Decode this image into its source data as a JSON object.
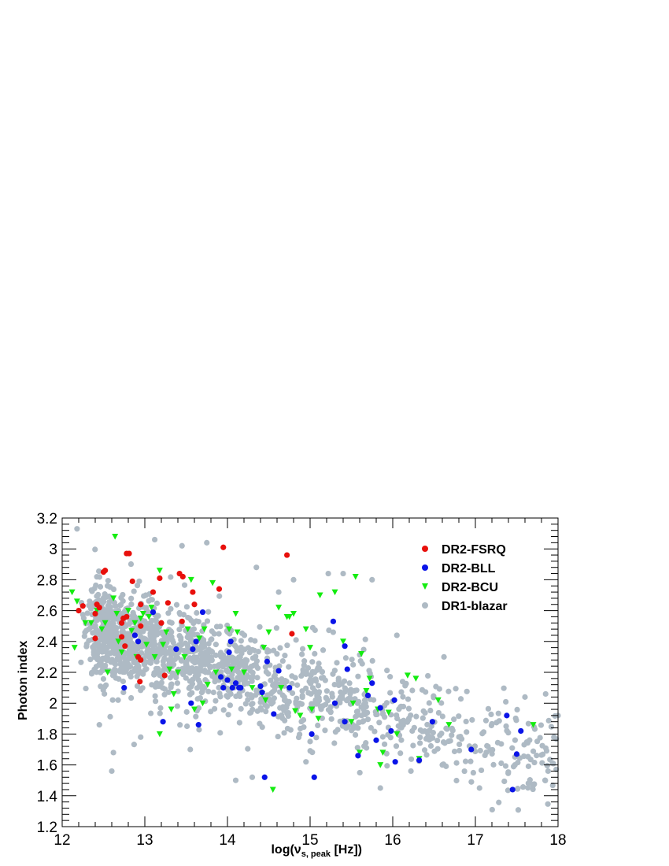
{
  "chart_data": {
    "type": "scatter",
    "title": "",
    "xlabel": "log(ν",
    "xlabel_sub": "s, peak",
    "xlabel_unit": " [Hz])",
    "ylabel": "Photon  index",
    "xlim": [
      12,
      18
    ],
    "ylim": [
      1.2,
      3.2
    ],
    "x_ticks": [
      "12",
      "13",
      "14",
      "15",
      "16",
      "17",
      "18"
    ],
    "y_ticks": [
      "1.2",
      "1.4",
      "1.6",
      "1.8",
      "2",
      "2.2",
      "2.4",
      "2.6",
      "2.8",
      "3",
      "3.2"
    ],
    "legend_position": "top-right",
    "series": [
      {
        "name": "DR2-FSRQ",
        "color": "#e8100c",
        "marker": "circle",
        "points": [
          [
            12.2,
            2.6
          ],
          [
            12.25,
            2.63
          ],
          [
            12.42,
            2.64
          ],
          [
            12.4,
            2.58
          ],
          [
            12.45,
            2.62
          ],
          [
            12.4,
            2.42
          ],
          [
            12.5,
            2.85
          ],
          [
            12.52,
            2.86
          ],
          [
            12.72,
            2.52
          ],
          [
            12.74,
            2.55
          ],
          [
            12.78,
            2.56
          ],
          [
            12.76,
            2.37
          ],
          [
            12.72,
            2.43
          ],
          [
            12.78,
            2.97
          ],
          [
            12.81,
            2.97
          ],
          [
            12.85,
            2.79
          ],
          [
            12.92,
            2.3
          ],
          [
            12.95,
            2.28
          ],
          [
            12.94,
            2.14
          ],
          [
            12.95,
            2.5
          ],
          [
            12.95,
            2.64
          ],
          [
            13.1,
            2.72
          ],
          [
            13.18,
            2.81
          ],
          [
            13.2,
            2.52
          ],
          [
            13.24,
            2.18
          ],
          [
            13.28,
            2.65
          ],
          [
            13.42,
            2.84
          ],
          [
            13.46,
            2.82
          ],
          [
            13.45,
            2.53
          ],
          [
            13.58,
            2.72
          ],
          [
            13.6,
            2.64
          ],
          [
            13.9,
            2.74
          ],
          [
            13.95,
            3.01
          ],
          [
            14.72,
            2.96
          ],
          [
            14.78,
            2.45
          ]
        ]
      },
      {
        "name": "DR2-BLL",
        "color": "#0a14e8",
        "marker": "circle",
        "points": [
          [
            12.75,
            2.1
          ],
          [
            12.88,
            2.44
          ],
          [
            12.92,
            2.4
          ],
          [
            13.1,
            2.59
          ],
          [
            13.22,
            1.88
          ],
          [
            13.38,
            2.35
          ],
          [
            13.56,
            2.0
          ],
          [
            13.58,
            2.35
          ],
          [
            13.62,
            2.4
          ],
          [
            13.65,
            1.86
          ],
          [
            13.7,
            2.59
          ],
          [
            13.92,
            2.17
          ],
          [
            13.95,
            2.1
          ],
          [
            14.0,
            2.15
          ],
          [
            14.02,
            2.33
          ],
          [
            14.04,
            2.4
          ],
          [
            14.06,
            2.1
          ],
          [
            14.1,
            2.13
          ],
          [
            14.14,
            2.1
          ],
          [
            14.16,
            2.1
          ],
          [
            14.4,
            2.11
          ],
          [
            14.42,
            2.07
          ],
          [
            14.45,
            1.52
          ],
          [
            14.48,
            2.27
          ],
          [
            14.56,
            1.93
          ],
          [
            14.62,
            2.21
          ],
          [
            14.75,
            2.1
          ],
          [
            15.02,
            1.8
          ],
          [
            15.05,
            1.52
          ],
          [
            15.28,
            2.53
          ],
          [
            15.3,
            2.0
          ],
          [
            15.42,
            2.37
          ],
          [
            15.45,
            2.22
          ],
          [
            15.42,
            1.88
          ],
          [
            15.58,
            1.66
          ],
          [
            15.7,
            2.05
          ],
          [
            15.75,
            2.13
          ],
          [
            15.8,
            1.76
          ],
          [
            15.85,
            1.97
          ],
          [
            15.98,
            1.82
          ],
          [
            16.02,
            2.02
          ],
          [
            16.03,
            1.62
          ],
          [
            16.32,
            1.63
          ],
          [
            16.48,
            1.88
          ],
          [
            16.95,
            1.7
          ],
          [
            17.38,
            1.92
          ],
          [
            17.45,
            1.44
          ],
          [
            17.5,
            1.67
          ],
          [
            17.55,
            1.82
          ]
        ]
      },
      {
        "name": "DR2-BCU",
        "color": "#14ec10",
        "marker": "triangle-down",
        "points": [
          [
            12.12,
            2.72
          ],
          [
            12.15,
            2.36
          ],
          [
            12.18,
            2.66
          ],
          [
            12.28,
            2.52
          ],
          [
            12.35,
            2.52
          ],
          [
            12.42,
            2.6
          ],
          [
            12.48,
            2.48
          ],
          [
            12.52,
            2.52
          ],
          [
            12.55,
            2.2
          ],
          [
            12.62,
            2.68
          ],
          [
            12.64,
            3.08
          ],
          [
            12.66,
            2.58
          ],
          [
            12.68,
            2.4
          ],
          [
            12.72,
            2.33
          ],
          [
            12.8,
            2.6
          ],
          [
            12.84,
            2.47
          ],
          [
            12.88,
            2.52
          ],
          [
            12.9,
            2.3
          ],
          [
            12.95,
            2.55
          ],
          [
            12.98,
            2.58
          ],
          [
            13.02,
            2.38
          ],
          [
            13.05,
            2.56
          ],
          [
            13.08,
            2.62
          ],
          [
            13.12,
            2.3
          ],
          [
            13.18,
            1.8
          ],
          [
            13.18,
            2.86
          ],
          [
            13.22,
            2.38
          ],
          [
            13.26,
            2.46
          ],
          [
            13.3,
            2.22
          ],
          [
            13.32,
            1.96
          ],
          [
            13.35,
            2.06
          ],
          [
            13.4,
            2.2
          ],
          [
            13.48,
            2.3
          ],
          [
            13.52,
            2.48
          ],
          [
            13.56,
            2.8
          ],
          [
            13.6,
            1.96
          ],
          [
            13.66,
            2.42
          ],
          [
            13.7,
            2.0
          ],
          [
            13.72,
            2.48
          ],
          [
            13.76,
            2.12
          ],
          [
            13.82,
            2.78
          ],
          [
            13.86,
            2.2
          ],
          [
            14.02,
            2.48
          ],
          [
            14.05,
            2.22
          ],
          [
            14.1,
            2.58
          ],
          [
            14.12,
            2.46
          ],
          [
            14.2,
            2.2
          ],
          [
            14.3,
            2.1
          ],
          [
            14.42,
            2.06
          ],
          [
            14.44,
            2.36
          ],
          [
            14.46,
            2.02
          ],
          [
            14.5,
            2.46
          ],
          [
            14.55,
            1.44
          ],
          [
            14.62,
            2.62
          ],
          [
            14.65,
            2.1
          ],
          [
            14.72,
            2.56
          ],
          [
            14.75,
            2.56
          ],
          [
            14.8,
            2.58
          ],
          [
            14.82,
            1.95
          ],
          [
            14.88,
            1.92
          ],
          [
            14.95,
            2.48
          ],
          [
            15.0,
            2.36
          ],
          [
            15.02,
            1.96
          ],
          [
            15.1,
            1.9
          ],
          [
            15.12,
            2.7
          ],
          [
            15.3,
            2.72
          ],
          [
            15.4,
            2.4
          ],
          [
            15.5,
            1.88
          ],
          [
            15.52,
            2.0
          ],
          [
            15.55,
            2.82
          ],
          [
            15.6,
            1.68
          ],
          [
            15.62,
            2.32
          ],
          [
            15.68,
            2.08
          ],
          [
            15.72,
            2.16
          ],
          [
            15.82,
            1.96
          ],
          [
            15.85,
            1.6
          ],
          [
            15.88,
            1.68
          ],
          [
            15.95,
            1.94
          ],
          [
            16.05,
            1.8
          ],
          [
            16.18,
            2.18
          ],
          [
            16.28,
            2.16
          ],
          [
            16.32,
            1.64
          ],
          [
            16.55,
            2.02
          ],
          [
            16.68,
            1.86
          ],
          [
            17.7,
            1.86
          ]
        ]
      },
      {
        "name": "DR1-blazar",
        "color": "#aebac4",
        "marker": "circle",
        "generated": true,
        "count": 1500,
        "trend": {
          "x_start": 12.5,
          "y_at_start": 2.45,
          "slope": -0.15,
          "x_range": [
            12.0,
            18.0
          ],
          "y_scatter_sd": 0.16
        },
        "points": [
          [
            12.18,
            3.13
          ],
          [
            12.6,
            1.56
          ],
          [
            12.62,
            1.68
          ],
          [
            13.12,
            3.06
          ],
          [
            13.45,
            3.02
          ],
          [
            13.75,
            3.04
          ],
          [
            14.35,
            2.88
          ],
          [
            14.62,
            2.72
          ],
          [
            14.8,
            2.8
          ],
          [
            15.22,
            2.84
          ],
          [
            15.4,
            2.84
          ],
          [
            15.75,
            2.8
          ],
          [
            15.28,
            2.46
          ],
          [
            16.05,
            2.44
          ],
          [
            16.62,
            2.3
          ],
          [
            17.6,
            2.04
          ],
          [
            17.85,
            2.06
          ],
          [
            17.88,
            1.56
          ],
          [
            17.05,
            1.45
          ],
          [
            16.6,
            1.6
          ],
          [
            16.22,
            1.56
          ],
          [
            15.85,
            1.45
          ],
          [
            14.95,
            1.62
          ],
          [
            14.1,
            1.5
          ],
          [
            14.3,
            1.52
          ],
          [
            13.55,
            1.7
          ],
          [
            12.95,
            1.78
          ],
          [
            12.45,
            1.86
          ],
          [
            18.0,
            1.92
          ],
          [
            17.95,
            1.78
          ]
        ]
      }
    ]
  }
}
